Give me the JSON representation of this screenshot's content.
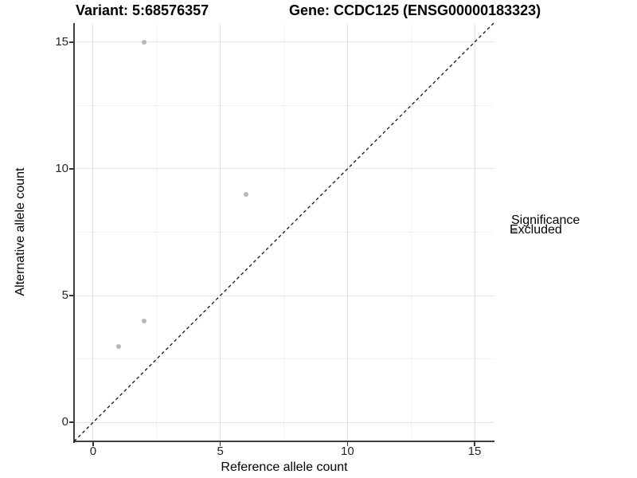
{
  "header": {
    "variant_title": "Variant: 5:68576357",
    "gene_title": "Gene: CCDC125 (ENSG00000183323)"
  },
  "chart_data": {
    "type": "scatter",
    "xlabel": "Reference allele count",
    "ylabel": "Alternative allele count",
    "xlim": [
      -0.75,
      15.75
    ],
    "ylim": [
      -0.75,
      15.75
    ],
    "x_ticks": [
      0,
      5,
      10,
      15
    ],
    "y_ticks": [
      0,
      5,
      10,
      15
    ],
    "x_minor_ticks": [
      2.5,
      7.5,
      12.5
    ],
    "y_minor_ticks": [
      2.5,
      7.5,
      12.5
    ],
    "grid": true,
    "points": [
      {
        "x": 2,
        "y": 15,
        "series": "Excluded"
      },
      {
        "x": 6,
        "y": 9,
        "series": "Excluded"
      },
      {
        "x": 2,
        "y": 4,
        "series": "Excluded"
      },
      {
        "x": 1,
        "y": 3,
        "series": "Excluded"
      }
    ],
    "point_color": "#b8b8b8",
    "reference_line": {
      "slope": 1,
      "intercept": 0,
      "style": "dashed",
      "color": "#141414"
    },
    "legend": {
      "position": "right",
      "title": "Significance",
      "entries": [
        {
          "label": "Excluded",
          "color": "#b5b5b5"
        }
      ]
    }
  },
  "colors": {
    "background": "#ffffff",
    "grid_major": "#e4e4e4",
    "grid_minor": "#f1f1f1",
    "axis_line": "#404040",
    "tick_label": "#262626",
    "title": "#000000"
  }
}
